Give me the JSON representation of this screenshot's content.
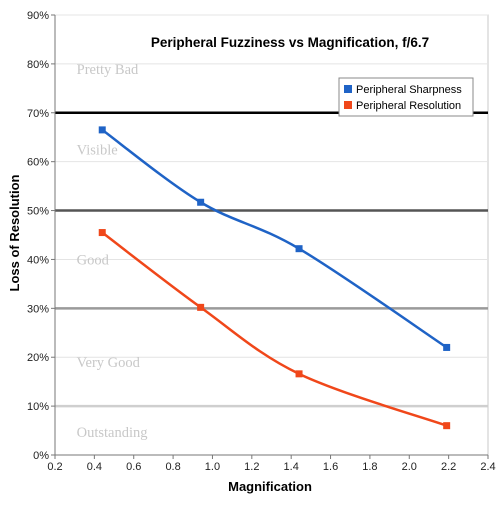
{
  "chart_data": {
    "type": "line",
    "title": "Peripheral Fuzziness vs Magnification, f/6.7",
    "xlabel": "Magnification",
    "ylabel": "Loss of Resolution",
    "xlim": [
      0.2,
      2.4
    ],
    "ylim": [
      0,
      0.9
    ],
    "x_ticks": [
      "0.2",
      "0.4",
      "0.6",
      "0.8",
      "1.0",
      "1.2",
      "1.4",
      "1.6",
      "1.8",
      "2.0",
      "2.2",
      "2.4"
    ],
    "y_ticks": [
      "0%",
      "10%",
      "20%",
      "30%",
      "40%",
      "50%",
      "60%",
      "70%",
      "80%",
      "90%"
    ],
    "legend_position": "top-right",
    "series": [
      {
        "name": "Peripheral Sharpness",
        "color": "#1f63c6",
        "x": [
          0.44,
          0.94,
          1.44,
          2.19
        ],
        "y": [
          0.665,
          0.517,
          0.422,
          0.22
        ]
      },
      {
        "name": "Peripheral Resolution",
        "color": "#f0471a",
        "x": [
          0.44,
          0.94,
          1.44,
          2.19
        ],
        "y": [
          0.455,
          0.302,
          0.166,
          0.06
        ]
      }
    ],
    "reference_lines": [
      {
        "y": 0.1,
        "color": "#cfcfcf"
      },
      {
        "y": 0.3,
        "color": "#9a9a9a"
      },
      {
        "y": 0.5,
        "color": "#555555"
      },
      {
        "y": 0.7,
        "color": "#000000"
      }
    ],
    "zones": [
      {
        "label": "Pretty Bad",
        "y": 0.79
      },
      {
        "label": "Visible",
        "y": 0.625
      },
      {
        "label": "Good",
        "y": 0.4
      },
      {
        "label": "Very Good",
        "y": 0.19
      },
      {
        "label": "Outstanding",
        "y": 0.047
      }
    ]
  }
}
